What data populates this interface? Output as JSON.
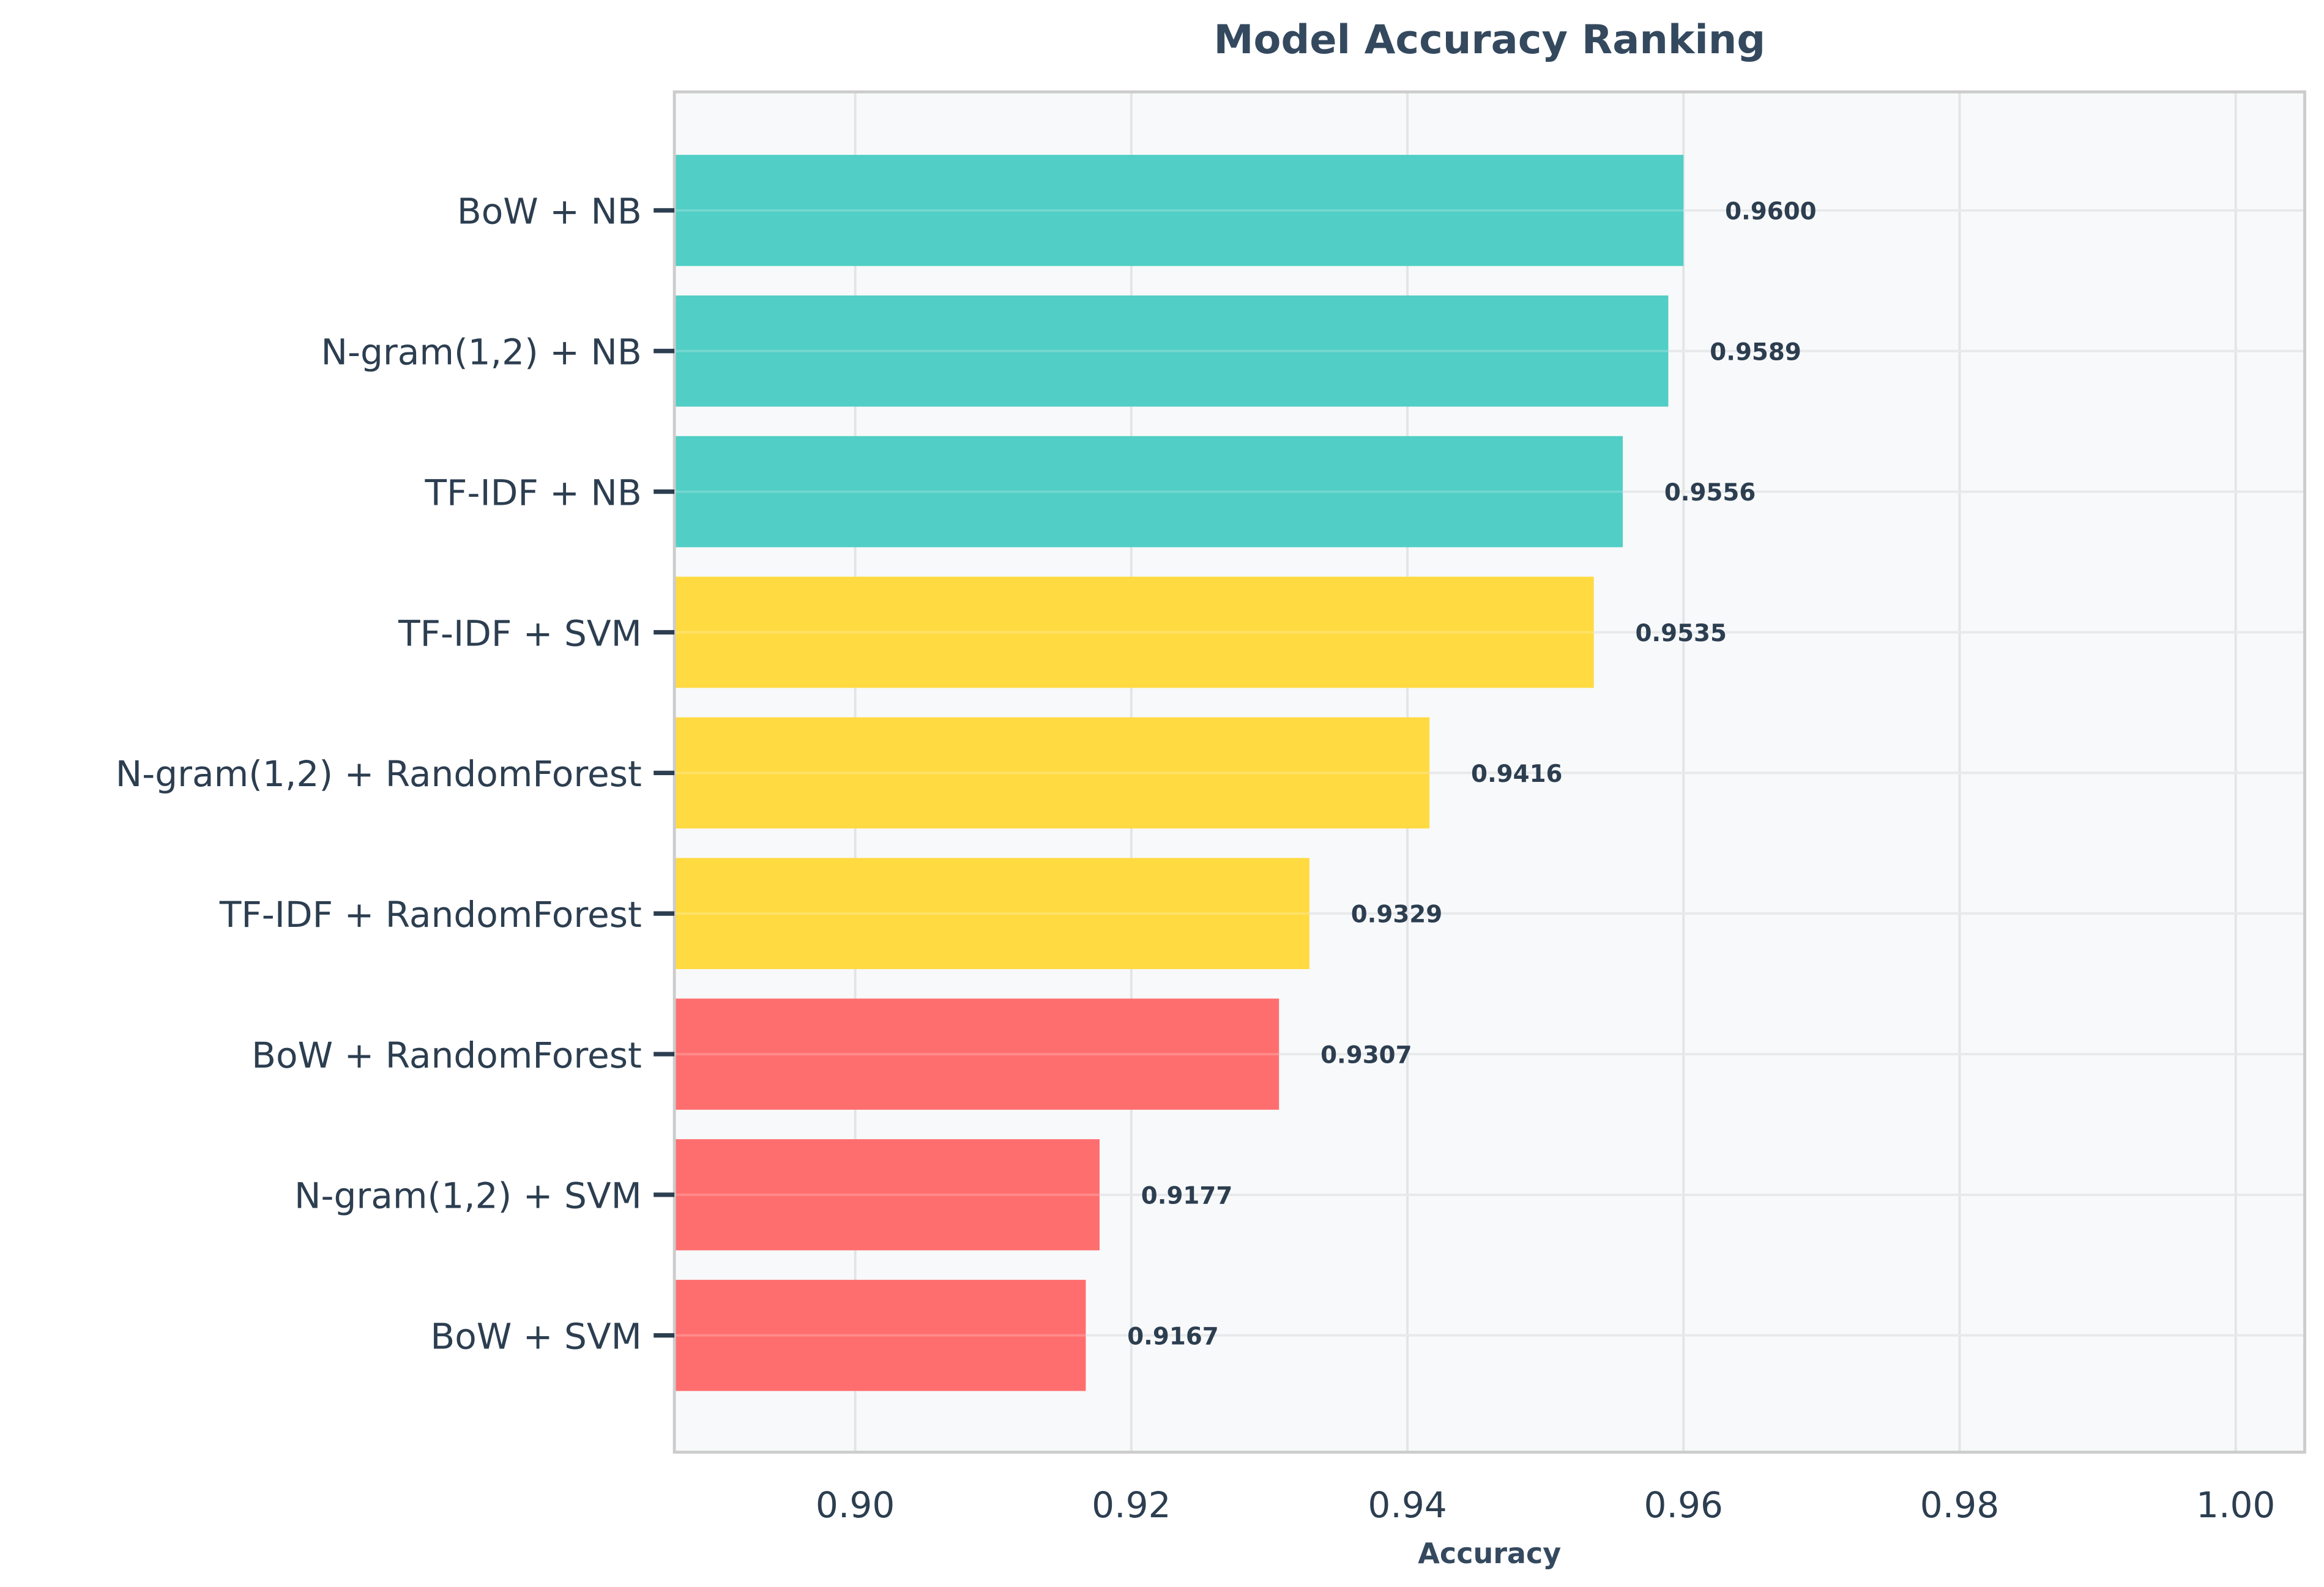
{
  "chart_data": {
    "type": "bar",
    "orientation": "horizontal",
    "title": "Model Accuracy Ranking",
    "xlabel": "Accuracy",
    "ylabel": "",
    "xlim": [
      0.8869,
      1.005
    ],
    "xticks": [
      0.9,
      0.92,
      0.94,
      0.96,
      0.98,
      1.0
    ],
    "xtick_labels": [
      "0.90",
      "0.92",
      "0.94",
      "0.96",
      "0.98",
      "1.00"
    ],
    "grid": true,
    "categories": [
      "BoW + NB",
      "N-gram(1,2) + NB",
      "TF-IDF + NB",
      "TF-IDF + SVM",
      "N-gram(1,2) + RandomForest",
      "TF-IDF + RandomForest",
      "BoW + RandomForest",
      "N-gram(1,2) + SVM",
      "BoW + SVM"
    ],
    "values": [
      0.96,
      0.9589,
      0.9556,
      0.9535,
      0.9416,
      0.9329,
      0.9307,
      0.9177,
      0.9167
    ],
    "value_labels": [
      "0.9600",
      "0.9589",
      "0.9556",
      "0.9535",
      "0.9416",
      "0.9329",
      "0.9307",
      "0.9177",
      "0.9167"
    ],
    "bar_colors": [
      "#4ECDC4",
      "#4ECDC4",
      "#4ECDC4",
      "#FFD93D",
      "#FFD93D",
      "#FFD93D",
      "#FF6B6B",
      "#FF6B6B",
      "#FF6B6B"
    ]
  },
  "colors": {
    "text": "#2C3E50",
    "plot_bg": "#F8F9FA",
    "spine": "#CCCCCC",
    "grid": "#E3E4E6"
  }
}
